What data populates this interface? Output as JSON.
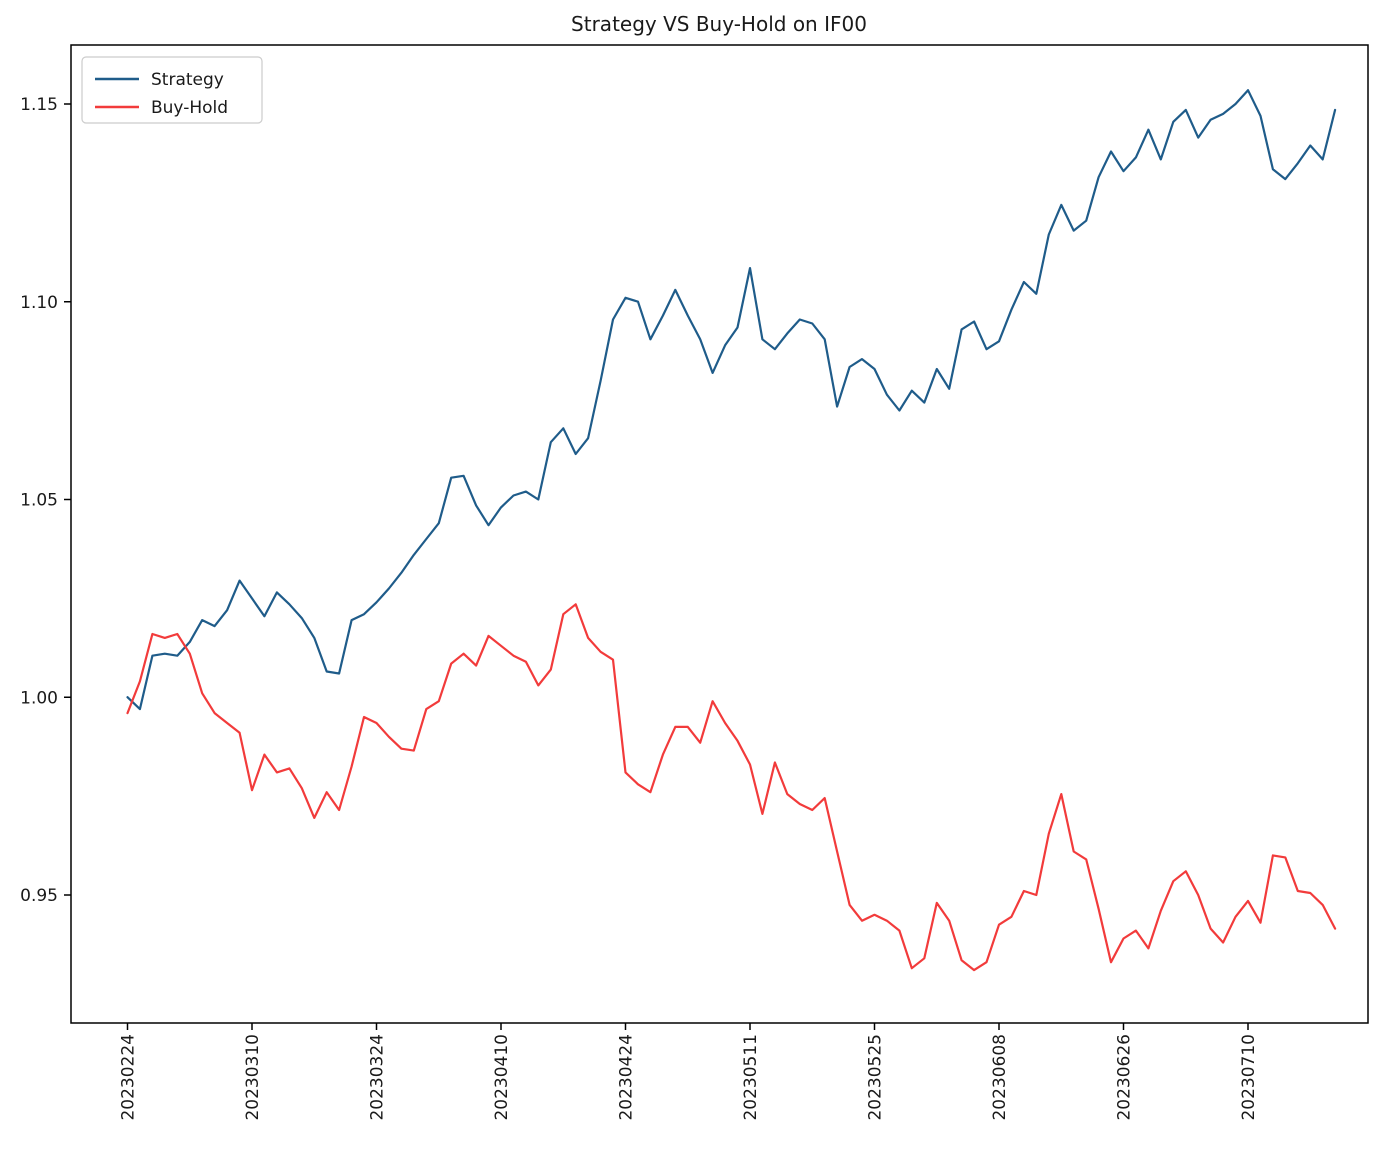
{
  "title": "Strategy VS Buy-Hold on IF00",
  "colors": {
    "strategy_line": "#1f5c8a",
    "buyhold_line": "#f23b3b",
    "axis": "#000000",
    "text": "#1a1a1a",
    "legend_border": "#cccccc",
    "background": "#ffffff"
  },
  "legend": {
    "position": "upper left",
    "entries": [
      {
        "label": "Strategy",
        "color": "#1f5c8a"
      },
      {
        "label": "Buy-Hold",
        "color": "#f23b3b"
      }
    ]
  },
  "chart_data": {
    "type": "line",
    "title": "Strategy VS Buy-Hold on IF00",
    "xlabel": "",
    "ylabel": "",
    "grid": false,
    "legend_position": "upper left",
    "ylim": [
      0.9176,
      1.1649
    ],
    "y_ticks": [
      "0.95",
      "1.00",
      "1.05",
      "1.10",
      "1.15"
    ],
    "y_tick_values": [
      0.95,
      1.0,
      1.05,
      1.1,
      1.15
    ],
    "x_tick_labels": [
      "20230224",
      "20230310",
      "20230324",
      "20230410",
      "20230424",
      "20230511",
      "20230525",
      "20230608",
      "20230626",
      "20230710"
    ],
    "x_tick_indices": [
      0,
      10,
      20,
      30,
      40,
      50,
      60,
      70,
      80,
      90
    ],
    "x_tick_rotation_deg": 90,
    "series": [
      {
        "name": "Strategy",
        "color": "#1f5c8a",
        "values": [
          1.0,
          0.997,
          1.0105,
          1.011,
          1.0105,
          1.014,
          1.0195,
          1.018,
          1.022,
          1.0295,
          1.025,
          1.0205,
          1.0265,
          1.0235,
          1.02,
          1.015,
          1.0065,
          1.006,
          1.0195,
          1.021,
          1.024,
          1.0275,
          1.0315,
          1.036,
          1.04,
          1.044,
          1.0555,
          1.056,
          1.0485,
          1.0435,
          1.048,
          1.051,
          1.052,
          1.05,
          1.0645,
          1.068,
          1.0615,
          1.0655,
          1.08,
          1.0955,
          1.101,
          1.1,
          1.0905,
          1.0965,
          1.103,
          1.0965,
          1.0905,
          1.082,
          1.089,
          1.0935,
          1.1085,
          1.0905,
          1.088,
          1.092,
          1.0955,
          1.0945,
          1.0905,
          1.0735,
          1.0835,
          1.0855,
          1.083,
          1.0765,
          1.0725,
          1.0775,
          1.0745,
          1.083,
          1.078,
          1.093,
          1.095,
          1.088,
          1.09,
          1.098,
          1.105,
          1.102,
          1.117,
          1.1245,
          1.118,
          1.1205,
          1.1315,
          1.138,
          1.133,
          1.1365,
          1.1435,
          1.136,
          1.1455,
          1.1485,
          1.1415,
          1.146,
          1.1475,
          1.15,
          1.1535,
          1.147,
          1.1335,
          1.131,
          1.135,
          1.1395,
          1.136,
          1.1485
        ]
      },
      {
        "name": "Buy-Hold",
        "color": "#f23b3b",
        "values": [
          0.996,
          1.004,
          1.016,
          1.015,
          1.016,
          1.011,
          1.001,
          0.996,
          0.9935,
          0.991,
          0.9765,
          0.9855,
          0.981,
          0.982,
          0.977,
          0.9695,
          0.976,
          0.9715,
          0.9825,
          0.995,
          0.9935,
          0.99,
          0.987,
          0.9865,
          0.997,
          0.999,
          1.0085,
          1.011,
          1.008,
          1.0155,
          1.013,
          1.0105,
          1.009,
          1.003,
          1.007,
          1.021,
          1.0235,
          1.015,
          1.0115,
          1.0095,
          0.981,
          0.978,
          0.976,
          0.9855,
          0.9925,
          0.9925,
          0.9885,
          0.999,
          0.9935,
          0.989,
          0.983,
          0.9705,
          0.9835,
          0.9755,
          0.973,
          0.9715,
          0.9745,
          0.961,
          0.9475,
          0.9435,
          0.945,
          0.9435,
          0.941,
          0.9315,
          0.934,
          0.948,
          0.9435,
          0.9335,
          0.931,
          0.933,
          0.9425,
          0.9445,
          0.951,
          0.95,
          0.9655,
          0.9755,
          0.961,
          0.959,
          0.9465,
          0.933,
          0.939,
          0.941,
          0.9365,
          0.946,
          0.9535,
          0.956,
          0.95,
          0.9415,
          0.938,
          0.9445,
          0.9485,
          0.943,
          0.96,
          0.9595,
          0.951,
          0.9505,
          0.9475,
          0.9415
        ]
      }
    ]
  }
}
